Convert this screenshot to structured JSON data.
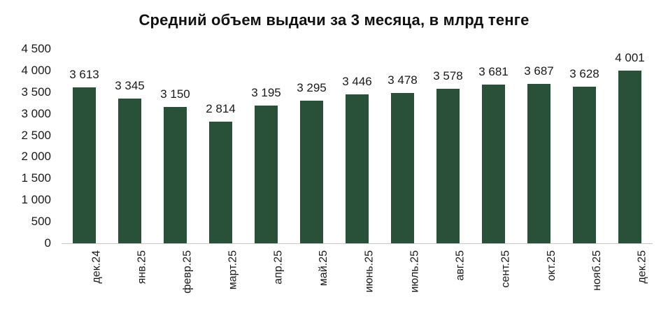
{
  "chart_data": {
    "type": "bar",
    "title": "Средний объем выдачи за 3 месяца, в млрд тенге",
    "xlabel": "",
    "ylabel": "",
    "ylim": [
      0,
      4500
    ],
    "yticks": [
      "0",
      "500",
      "1 000",
      "1 500",
      "2 000",
      "2 500",
      "3 000",
      "3 500",
      "4 000",
      "4 500"
    ],
    "grid": false,
    "legend": null,
    "bar_color": "#29513a",
    "categories": [
      "дек.24",
      "янв.25",
      "февр.25",
      "март.25",
      "апр.25",
      "май.25",
      "июнь.25",
      "июль.25",
      "авг.25",
      "сент.25",
      "окт.25",
      "нояб.25",
      "дек.25"
    ],
    "values": [
      3613,
      3345,
      3150,
      2814,
      3195,
      3295,
      3446,
      3478,
      3578,
      3681,
      3687,
      3628,
      4001
    ],
    "data_labels": [
      "3 613",
      "3 345",
      "3 150",
      "2 814",
      "3 195",
      "3 295",
      "3 446",
      "3 478",
      "3 578",
      "3 681",
      "3 687",
      "3 628",
      "4 001"
    ]
  }
}
